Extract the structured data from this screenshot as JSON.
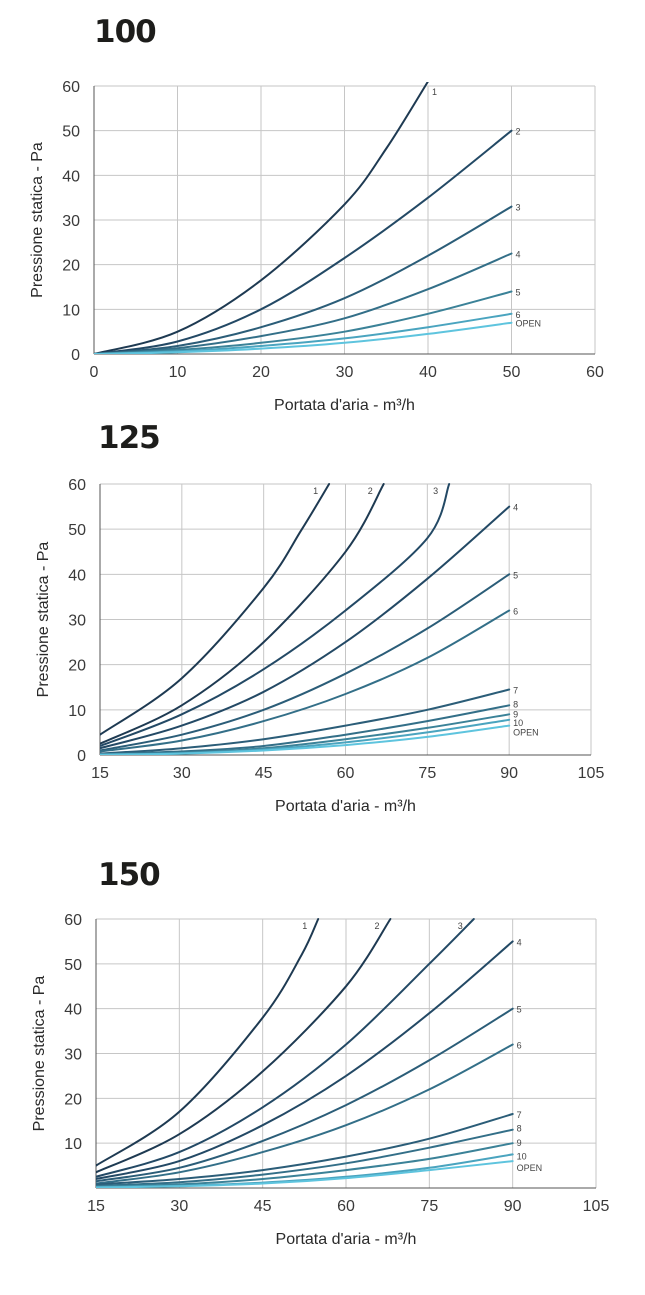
{
  "chart_data": [
    {
      "type": "line",
      "title": "100",
      "xlabel": "Portata d'aria - m³/h",
      "ylabel": "Pressione statica - Pa",
      "xlim": [
        0,
        60
      ],
      "ylim": [
        0,
        60
      ],
      "xticks": [
        "0",
        "10",
        "20",
        "30",
        "40",
        "50",
        "60"
      ],
      "yticks": [
        "0",
        "10",
        "20",
        "30",
        "40",
        "50",
        "60"
      ],
      "grid": true,
      "series": [
        {
          "name": "1",
          "color": "#1e3a52",
          "x": [
            0,
            10,
            20,
            30,
            35,
            40
          ],
          "y": [
            0,
            5,
            16.5,
            33.5,
            46,
            61
          ]
        },
        {
          "name": "2",
          "color": "#234965",
          "x": [
            0,
            10,
            20,
            30,
            40,
            50
          ],
          "y": [
            0,
            2.8,
            10,
            21.5,
            35,
            50
          ]
        },
        {
          "name": "3",
          "color": "#2b5d78",
          "x": [
            0,
            10,
            20,
            30,
            40,
            50
          ],
          "y": [
            0,
            1.8,
            6,
            12.5,
            22,
            33
          ]
        },
        {
          "name": "4",
          "color": "#336f88",
          "x": [
            0,
            10,
            20,
            30,
            40,
            50
          ],
          "y": [
            0,
            1.3,
            4,
            8,
            14.5,
            22.5
          ]
        },
        {
          "name": "5",
          "color": "#3b8298",
          "x": [
            0,
            10,
            20,
            30,
            40,
            50
          ],
          "y": [
            0,
            0.9,
            2.5,
            5,
            9,
            14
          ]
        },
        {
          "name": "6",
          "color": "#4aa4bf",
          "x": [
            0,
            10,
            20,
            30,
            40,
            50
          ],
          "y": [
            0,
            0.6,
            1.8,
            3.5,
            6,
            9
          ]
        },
        {
          "name": "OPEN",
          "color": "#5ec4de",
          "x": [
            0,
            10,
            20,
            30,
            40,
            50
          ],
          "y": [
            0,
            0.4,
            1.2,
            2.5,
            4.5,
            7
          ]
        }
      ]
    },
    {
      "type": "line",
      "title": "125",
      "xlabel": "Portata d'aria - m³/h",
      "ylabel": "Pressione statica - Pa",
      "xlim": [
        15,
        105
      ],
      "ylim": [
        0,
        60
      ],
      "xticks": [
        "15",
        "30",
        "45",
        "60",
        "75",
        "90",
        "105"
      ],
      "yticks": [
        "0",
        "10",
        "20",
        "30",
        "40",
        "50",
        "60"
      ],
      "grid": true,
      "series": [
        {
          "name": "1",
          "color": "#1e3a52",
          "x": [
            15,
            30,
            45,
            52,
            57
          ],
          "y": [
            4.5,
            17,
            37,
            50,
            60
          ]
        },
        {
          "name": "2",
          "color": "#1e3a52",
          "x": [
            15,
            30,
            45,
            60,
            67
          ],
          "y": [
            2.5,
            11,
            25,
            45,
            60
          ]
        },
        {
          "name": "3",
          "color": "#234965",
          "x": [
            15,
            30,
            45,
            60,
            75,
            79
          ],
          "y": [
            2,
            9,
            19,
            32,
            48,
            60
          ]
        },
        {
          "name": "4",
          "color": "#234965",
          "x": [
            15,
            30,
            45,
            60,
            75,
            90
          ],
          "y": [
            1.5,
            6.5,
            14,
            25,
            39,
            55
          ]
        },
        {
          "name": "5",
          "color": "#2b5d78",
          "x": [
            15,
            30,
            45,
            60,
            75,
            90
          ],
          "y": [
            1,
            4.5,
            10,
            18,
            28,
            40
          ]
        },
        {
          "name": "6",
          "color": "#336f88",
          "x": [
            15,
            30,
            45,
            60,
            75,
            90
          ],
          "y": [
            0.8,
            3.2,
            7.5,
            13.5,
            21.5,
            32
          ]
        },
        {
          "name": "7",
          "color": "#2b5d78",
          "x": [
            15,
            30,
            45,
            60,
            75,
            90
          ],
          "y": [
            0.3,
            1.5,
            3.5,
            6.5,
            10,
            14.5
          ]
        },
        {
          "name": "8",
          "color": "#336f88",
          "x": [
            15,
            30,
            45,
            60,
            75,
            90
          ],
          "y": [
            0.2,
            0.8,
            2,
            4.5,
            7.5,
            11
          ]
        },
        {
          "name": "9",
          "color": "#3b8298",
          "x": [
            15,
            30,
            45,
            60,
            75,
            90
          ],
          "y": [
            0.1,
            0.5,
            1.5,
            3.5,
            6,
            9
          ]
        },
        {
          "name": "10",
          "color": "#4aa4bf",
          "x": [
            15,
            30,
            45,
            60,
            75,
            90
          ],
          "y": [
            0.1,
            0.4,
            1.2,
            2.8,
            5,
            7.8
          ]
        },
        {
          "name": "OPEN",
          "color": "#5ec4de",
          "x": [
            15,
            30,
            45,
            60,
            75,
            90
          ],
          "y": [
            0.05,
            0.3,
            1,
            2.2,
            4,
            6.5
          ]
        }
      ]
    },
    {
      "type": "line",
      "title": "150",
      "xlabel": "Portata d'aria - m³/h",
      "ylabel": "Pressione statica - Pa",
      "xlim": [
        15,
        105
      ],
      "ylim": [
        0,
        60
      ],
      "xticks": [
        "15",
        "30",
        "45",
        "60",
        "75",
        "90",
        "105"
      ],
      "yticks": [
        "",
        "10",
        "20",
        "30",
        "40",
        "50",
        "60"
      ],
      "grid": true,
      "series": [
        {
          "name": "1",
          "color": "#1e3a52",
          "x": [
            15,
            30,
            45,
            52,
            55
          ],
          "y": [
            5,
            17,
            38,
            52,
            60
          ]
        },
        {
          "name": "2",
          "color": "#1e3a52",
          "x": [
            15,
            30,
            45,
            60,
            68
          ],
          "y": [
            3.5,
            12,
            26,
            45,
            60
          ]
        },
        {
          "name": "3",
          "color": "#234965",
          "x": [
            15,
            30,
            45,
            60,
            75,
            83
          ],
          "y": [
            2.5,
            8,
            18,
            32,
            50,
            60
          ]
        },
        {
          "name": "4",
          "color": "#234965",
          "x": [
            15,
            30,
            45,
            60,
            75,
            90
          ],
          "y": [
            2,
            6,
            14,
            25,
            39,
            55
          ]
        },
        {
          "name": "5",
          "color": "#2b5d78",
          "x": [
            15,
            30,
            45,
            60,
            75,
            90
          ],
          "y": [
            1.5,
            4.5,
            10.5,
            18.5,
            28.5,
            40
          ]
        },
        {
          "name": "6",
          "color": "#336f88",
          "x": [
            15,
            30,
            45,
            60,
            75,
            90
          ],
          "y": [
            1,
            3.5,
            8,
            14,
            22,
            32
          ]
        },
        {
          "name": "7",
          "color": "#2b5d78",
          "x": [
            15,
            30,
            45,
            60,
            75,
            90
          ],
          "y": [
            0.8,
            2,
            4,
            7,
            11,
            16.5
          ]
        },
        {
          "name": "8",
          "color": "#336f88",
          "x": [
            15,
            30,
            45,
            60,
            75,
            90
          ],
          "y": [
            0.5,
            1.3,
            3,
            5.5,
            9,
            13
          ]
        },
        {
          "name": "9",
          "color": "#3b8298",
          "x": [
            15,
            30,
            45,
            60,
            75,
            90
          ],
          "y": [
            0.3,
            0.8,
            2,
            4,
            6.5,
            10
          ]
        },
        {
          "name": "10",
          "color": "#4aa4bf",
          "x": [
            15,
            30,
            45,
            60,
            75,
            90
          ],
          "y": [
            0.2,
            0.5,
            1.2,
            2.5,
            4.5,
            7.5
          ]
        },
        {
          "name": "OPEN",
          "color": "#5ec4de",
          "x": [
            15,
            30,
            45,
            60,
            75,
            90
          ],
          "y": [
            0.1,
            0.4,
            1,
            2.2,
            4,
            6
          ]
        }
      ]
    }
  ]
}
